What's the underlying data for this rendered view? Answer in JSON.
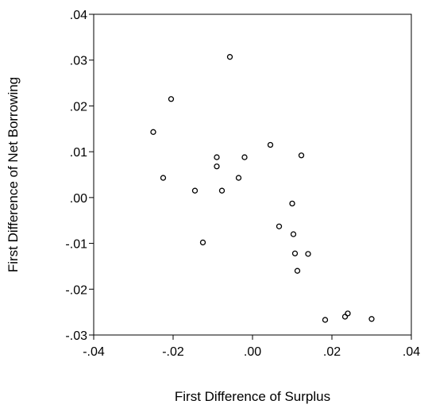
{
  "chart_data": {
    "type": "scatter",
    "title": "",
    "xlabel": "First Difference of Surplus",
    "ylabel": "First Difference of Net Borrowing",
    "xlim": [
      -0.04,
      0.04
    ],
    "ylim": [
      -0.03,
      0.04
    ],
    "grid": false,
    "x_ticks": [
      -0.04,
      -0.02,
      0.0,
      0.02,
      0.04
    ],
    "x_tick_labels": [
      "-.04",
      "-.02",
      ".00",
      ".02",
      ".04"
    ],
    "y_ticks": [
      -0.03,
      -0.02,
      -0.01,
      0.0,
      0.01,
      0.02,
      0.03,
      0.04
    ],
    "y_tick_labels": [
      "-.03",
      "-.02",
      "-.01",
      ".00",
      ".01",
      ".02",
      ".03",
      ".04"
    ],
    "marker_color": "#000000",
    "points": [
      {
        "x": -0.0057,
        "y": 0.0307
      },
      {
        "x": -0.0205,
        "y": 0.0215
      },
      {
        "x": -0.025,
        "y": 0.0143
      },
      {
        "x": -0.0225,
        "y": 0.0043
      },
      {
        "x": -0.0145,
        "y": 0.0015
      },
      {
        "x": -0.009,
        "y": 0.0088
      },
      {
        "x": -0.009,
        "y": 0.0068
      },
      {
        "x": -0.0077,
        "y": 0.0015
      },
      {
        "x": -0.002,
        "y": 0.0088
      },
      {
        "x": -0.0035,
        "y": 0.0043
      },
      {
        "x": 0.0045,
        "y": 0.0115
      },
      {
        "x": 0.0123,
        "y": 0.0092
      },
      {
        "x": -0.0125,
        "y": -0.0098
      },
      {
        "x": 0.01,
        "y": -0.0013
      },
      {
        "x": 0.0067,
        "y": -0.0063
      },
      {
        "x": 0.0103,
        "y": -0.008
      },
      {
        "x": 0.0107,
        "y": -0.0122
      },
      {
        "x": 0.014,
        "y": -0.0123
      },
      {
        "x": 0.0113,
        "y": -0.016
      },
      {
        "x": 0.0183,
        "y": -0.0267
      },
      {
        "x": 0.0233,
        "y": -0.026
      },
      {
        "x": 0.024,
        "y": -0.0253
      },
      {
        "x": 0.03,
        "y": -0.0265
      }
    ]
  }
}
